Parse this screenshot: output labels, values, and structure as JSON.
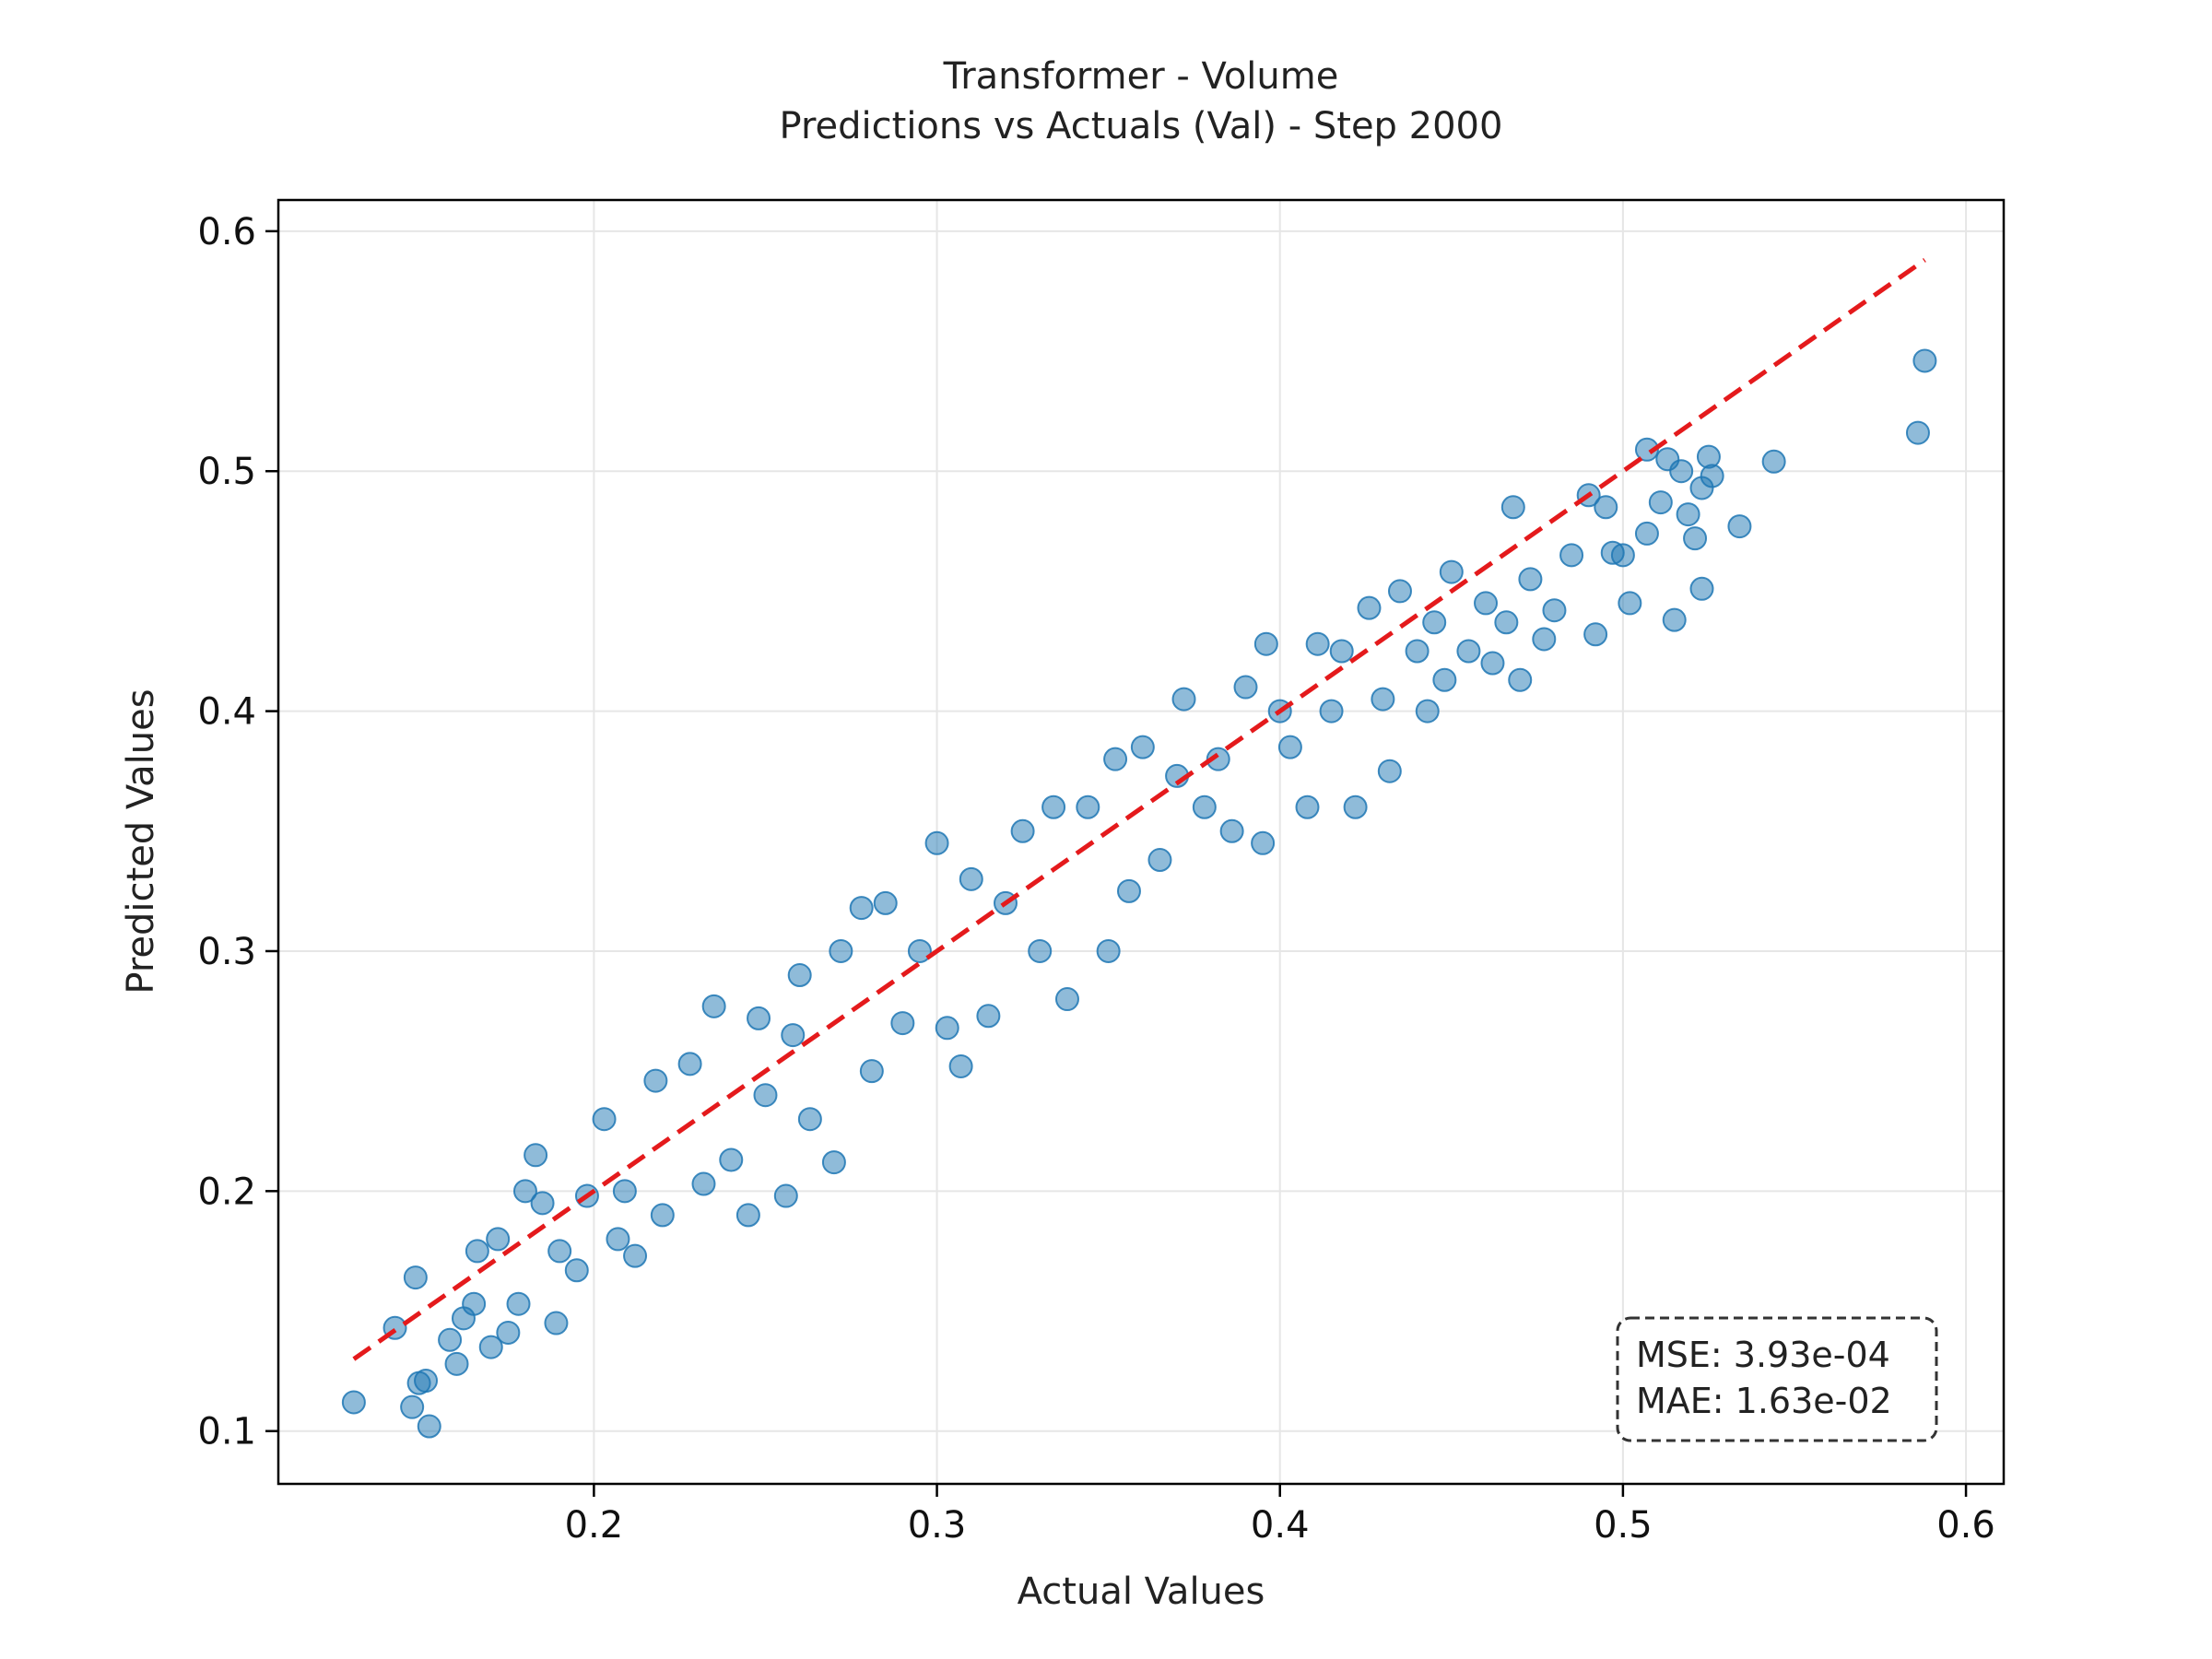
{
  "chart_data": {
    "type": "scatter",
    "title": "Transformer - Volume",
    "subtitle": "Predictions vs Actuals (Val) - Step 2000",
    "xlabel": "Actual Values",
    "ylabel": "Predicted Values",
    "xlim": [
      0.108,
      0.611
    ],
    "ylim": [
      0.078,
      0.613
    ],
    "xticks": [
      0.2,
      0.3,
      0.4,
      0.5,
      0.6
    ],
    "xtick_labels": [
      "0.2",
      "0.3",
      "0.4",
      "0.5",
      "0.6"
    ],
    "yticks": [
      0.1,
      0.2,
      0.3,
      0.4,
      0.5,
      0.6
    ],
    "ytick_labels": [
      "0.1",
      "0.2",
      "0.3",
      "0.4",
      "0.5",
      "0.6"
    ],
    "grid": true,
    "point_color": "#1f77b4",
    "point_opacity": 0.5,
    "reference_line": {
      "style": "dashed",
      "color": "#e41a1c",
      "from": [
        0.13,
        0.13
      ],
      "to": [
        0.588,
        0.588
      ]
    },
    "stats_box": {
      "position": "bottom-right",
      "lines": [
        "MSE: 3.93e-04",
        "MAE: 1.63e-02"
      ]
    },
    "points": [
      [
        0.13,
        0.112
      ],
      [
        0.142,
        0.143
      ],
      [
        0.147,
        0.11
      ],
      [
        0.152,
        0.102
      ],
      [
        0.149,
        0.12
      ],
      [
        0.151,
        0.121
      ],
      [
        0.158,
        0.138
      ],
      [
        0.16,
        0.128
      ],
      [
        0.148,
        0.164
      ],
      [
        0.162,
        0.147
      ],
      [
        0.166,
        0.175
      ],
      [
        0.165,
        0.153
      ],
      [
        0.17,
        0.135
      ],
      [
        0.172,
        0.18
      ],
      [
        0.175,
        0.141
      ],
      [
        0.178,
        0.153
      ],
      [
        0.18,
        0.2
      ],
      [
        0.183,
        0.215
      ],
      [
        0.185,
        0.195
      ],
      [
        0.189,
        0.145
      ],
      [
        0.19,
        0.175
      ],
      [
        0.195,
        0.167
      ],
      [
        0.198,
        0.198
      ],
      [
        0.203,
        0.23
      ],
      [
        0.207,
        0.18
      ],
      [
        0.209,
        0.2
      ],
      [
        0.212,
        0.173
      ],
      [
        0.218,
        0.246
      ],
      [
        0.22,
        0.19
      ],
      [
        0.228,
        0.253
      ],
      [
        0.232,
        0.203
      ],
      [
        0.235,
        0.277
      ],
      [
        0.24,
        0.213
      ],
      [
        0.245,
        0.19
      ],
      [
        0.248,
        0.272
      ],
      [
        0.25,
        0.24
      ],
      [
        0.256,
        0.198
      ],
      [
        0.258,
        0.265
      ],
      [
        0.26,
        0.29
      ],
      [
        0.263,
        0.23
      ],
      [
        0.27,
        0.212
      ],
      [
        0.272,
        0.3
      ],
      [
        0.278,
        0.318
      ],
      [
        0.281,
        0.25
      ],
      [
        0.285,
        0.32
      ],
      [
        0.29,
        0.27
      ],
      [
        0.295,
        0.3
      ],
      [
        0.3,
        0.345
      ],
      [
        0.303,
        0.268
      ],
      [
        0.307,
        0.252
      ],
      [
        0.31,
        0.33
      ],
      [
        0.315,
        0.273
      ],
      [
        0.32,
        0.32
      ],
      [
        0.325,
        0.35
      ],
      [
        0.33,
        0.3
      ],
      [
        0.334,
        0.36
      ],
      [
        0.338,
        0.28
      ],
      [
        0.344,
        0.36
      ],
      [
        0.35,
        0.3
      ],
      [
        0.352,
        0.38
      ],
      [
        0.356,
        0.325
      ],
      [
        0.36,
        0.385
      ],
      [
        0.365,
        0.338
      ],
      [
        0.37,
        0.373
      ],
      [
        0.372,
        0.405
      ],
      [
        0.378,
        0.36
      ],
      [
        0.382,
        0.38
      ],
      [
        0.386,
        0.35
      ],
      [
        0.39,
        0.41
      ],
      [
        0.395,
        0.345
      ],
      [
        0.396,
        0.428
      ],
      [
        0.4,
        0.4
      ],
      [
        0.403,
        0.385
      ],
      [
        0.408,
        0.36
      ],
      [
        0.411,
        0.428
      ],
      [
        0.415,
        0.4
      ],
      [
        0.418,
        0.425
      ],
      [
        0.422,
        0.36
      ],
      [
        0.426,
        0.443
      ],
      [
        0.43,
        0.405
      ],
      [
        0.432,
        0.375
      ],
      [
        0.435,
        0.45
      ],
      [
        0.44,
        0.425
      ],
      [
        0.443,
        0.4
      ],
      [
        0.445,
        0.437
      ],
      [
        0.448,
        0.413
      ],
      [
        0.45,
        0.458
      ],
      [
        0.455,
        0.425
      ],
      [
        0.46,
        0.445
      ],
      [
        0.462,
        0.42
      ],
      [
        0.466,
        0.437
      ],
      [
        0.468,
        0.485
      ],
      [
        0.47,
        0.413
      ],
      [
        0.473,
        0.455
      ],
      [
        0.477,
        0.43
      ],
      [
        0.48,
        0.442
      ],
      [
        0.485,
        0.465
      ],
      [
        0.49,
        0.49
      ],
      [
        0.492,
        0.432
      ],
      [
        0.495,
        0.485
      ],
      [
        0.497,
        0.466
      ],
      [
        0.5,
        0.465
      ],
      [
        0.502,
        0.445
      ],
      [
        0.507,
        0.474
      ],
      [
        0.507,
        0.509
      ],
      [
        0.511,
        0.487
      ],
      [
        0.513,
        0.505
      ],
      [
        0.515,
        0.438
      ],
      [
        0.517,
        0.5
      ],
      [
        0.519,
        0.482
      ],
      [
        0.521,
        0.472
      ],
      [
        0.523,
        0.493
      ],
      [
        0.523,
        0.451
      ],
      [
        0.525,
        0.506
      ],
      [
        0.526,
        0.498
      ],
      [
        0.534,
        0.477
      ],
      [
        0.544,
        0.504
      ],
      [
        0.586,
        0.516
      ],
      [
        0.588,
        0.546
      ]
    ]
  }
}
